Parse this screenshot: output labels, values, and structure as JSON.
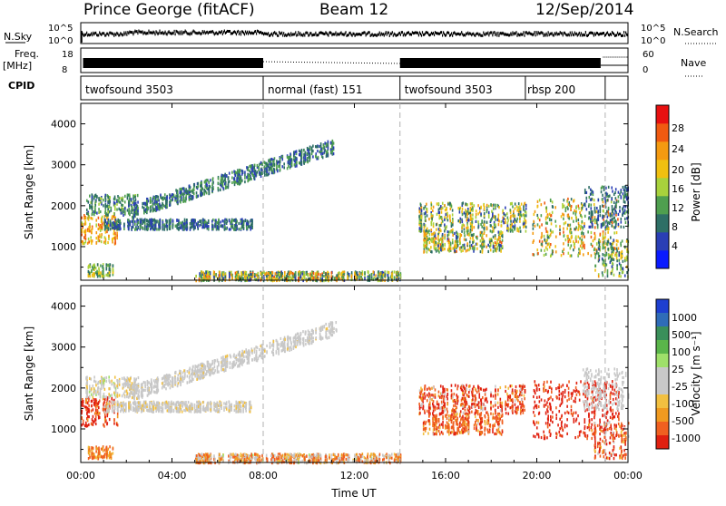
{
  "chart_data": {
    "type": "heatmap",
    "header": {
      "station": "Prince George (fitACF)",
      "beam": "Beam 12",
      "date": "12/Sep/2014"
    },
    "side_labels": {
      "nsky": "N.Sky",
      "freq": "Freq.",
      "freq_unit": "[MHz]",
      "cpid": "CPID",
      "nsearch": "N.Search",
      "nave": "Nave"
    },
    "noise_panel": {
      "left_ticks": [
        "10^5",
        "10^0"
      ],
      "right_ticks": [
        "10^5",
        "10^0"
      ]
    },
    "freq_panel": {
      "left_ticks": [
        "18",
        "8"
      ],
      "right_ticks": [
        "60",
        "0"
      ]
    },
    "cpid_segments": [
      {
        "label": "twofsound 3503",
        "start": 0.0,
        "end": 8.0
      },
      {
        "label": "normal (fast) 151",
        "start": 8.0,
        "end": 14.0
      },
      {
        "label": "twofsound 3503",
        "start": 14.0,
        "end": 19.5
      },
      {
        "label": "rbsp 200",
        "start": 19.5,
        "end": 23.0
      }
    ],
    "x_axis": {
      "label": "Time UT",
      "range": [
        0,
        24
      ],
      "ticks": [
        0,
        4,
        8,
        12,
        16,
        20,
        24
      ],
      "tick_labels": [
        "00:00",
        "04:00",
        "08:00",
        "12:00",
        "16:00",
        "20:00",
        "00:00"
      ]
    },
    "y_axis": {
      "label": "Slant Range [km]",
      "range": [
        180,
        4500
      ],
      "ticks": [
        1000,
        2000,
        3000,
        4000
      ],
      "tick_labels": [
        "1000",
        "2000",
        "3000",
        "4000"
      ]
    },
    "power": {
      "colorbar_label": "Power [dB]",
      "tick_labels": [
        "4",
        "8",
        "12",
        "16",
        "20",
        "24",
        "28"
      ],
      "colors": [
        "#0a1aff",
        "#2a3fb5",
        "#2e6f66",
        "#4f9f4f",
        "#a8d23c",
        "#f0c010",
        "#f49a10",
        "#f05a10",
        "#e81010"
      ]
    },
    "velocity": {
      "colorbar_label": "Velocity [m s⁻¹]",
      "tick_labels": [
        "1000",
        "500",
        "100",
        "25",
        "-25",
        "-100",
        "-500",
        "-1000"
      ],
      "colors": [
        "#1e3fd0",
        "#2f6cb8",
        "#3a8f5a",
        "#5ab54a",
        "#9fe06a",
        "#c8c8c8",
        "#c8c8c8",
        "#f2c040",
        "#f09a20",
        "#f06020",
        "#e02010"
      ]
    },
    "scatter_regions": [
      {
        "name": "evening-e-region",
        "t": [
          0.0,
          1.6
        ],
        "r": [
          1100,
          1800
        ],
        "power": [
          16,
          28
        ],
        "vel": [
          -600,
          -50
        ]
      },
      {
        "name": "early-upper-band",
        "t": [
          0.2,
          2.5
        ],
        "r": [
          1800,
          2300
        ],
        "power": [
          6,
          16
        ],
        "vel": [
          -50,
          60
        ]
      },
      {
        "name": "rising-arc",
        "t": [
          2.2,
          11.2
        ],
        "r": [
          1900,
          3500
        ],
        "power": [
          4,
          14
        ],
        "vel": [
          -30,
          40
        ]
      },
      {
        "name": "band-1500",
        "t": [
          1.0,
          7.5
        ],
        "r": [
          1450,
          1700
        ],
        "power": [
          4,
          12
        ],
        "vel": [
          -40,
          40
        ]
      },
      {
        "name": "near-range-day",
        "t": [
          5.0,
          14.0
        ],
        "r": [
          200,
          420
        ],
        "power": [
          4,
          26
        ],
        "vel": [
          -200,
          60
        ]
      },
      {
        "name": "near-range-morning",
        "t": [
          0.3,
          1.4
        ],
        "r": [
          300,
          600
        ],
        "power": [
          8,
          20
        ],
        "vel": [
          -150,
          -30
        ]
      },
      {
        "name": "afternoon-2000",
        "t": [
          14.8,
          19.5
        ],
        "r": [
          1400,
          2100
        ],
        "power": [
          4,
          24
        ],
        "vel": [
          -500,
          30
        ]
      },
      {
        "name": "afternoon-1000",
        "t": [
          15.0,
          18.5
        ],
        "r": [
          900,
          1400
        ],
        "power": [
          6,
          26
        ],
        "vel": [
          -300,
          -20
        ]
      },
      {
        "name": "evening-nw",
        "t": [
          19.8,
          23.6
        ],
        "r": [
          800,
          2200
        ],
        "power": [
          8,
          28
        ],
        "vel": [
          -800,
          -80
        ]
      },
      {
        "name": "late-near",
        "t": [
          22.5,
          24.0
        ],
        "r": [
          300,
          1200
        ],
        "power": [
          6,
          22
        ],
        "vel": [
          -400,
          20
        ]
      },
      {
        "name": "late-upper",
        "t": [
          22.0,
          24.0
        ],
        "r": [
          1500,
          2500
        ],
        "power": [
          4,
          12
        ],
        "vel": [
          -20,
          30
        ]
      }
    ]
  }
}
